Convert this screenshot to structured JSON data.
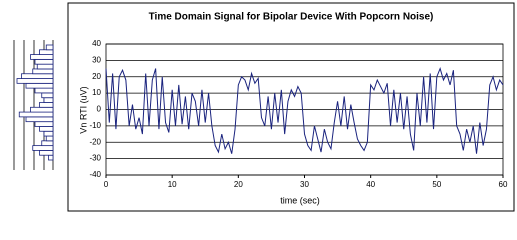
{
  "chart_data": [
    {
      "type": "line",
      "title": "Time Domain Signal for Bipolar Device With Popcorn Noise)",
      "xlabel": "time (sec)",
      "ylabel": "Vn RTI (uV)",
      "x": [
        0,
        0.5,
        1,
        1.5,
        2,
        2.5,
        3,
        3.5,
        4,
        4.5,
        5,
        5.5,
        6,
        6.5,
        7,
        7.5,
        8,
        8.5,
        9,
        9.5,
        10,
        10.5,
        11,
        11.5,
        12,
        12.5,
        13,
        13.5,
        14,
        14.5,
        15,
        15.5,
        16,
        16.5,
        17,
        17.5,
        18,
        18.5,
        19,
        19.5,
        20,
        20.5,
        21,
        21.5,
        22,
        22.5,
        23,
        23.5,
        24,
        24.5,
        25,
        25.5,
        26,
        26.5,
        27,
        27.5,
        28,
        28.5,
        29,
        29.5,
        30,
        30.5,
        31,
        31.5,
        32,
        32.5,
        33,
        33.5,
        34,
        34.5,
        35,
        35.5,
        36,
        36.5,
        37,
        37.5,
        38,
        38.5,
        39,
        39.5,
        40,
        40.5,
        41,
        41.5,
        42,
        42.5,
        43,
        43.5,
        44,
        44.5,
        45,
        45.5,
        46,
        46.5,
        47,
        47.5,
        48,
        48.5,
        49,
        49.5,
        50,
        50.5,
        51,
        51.5,
        52,
        52.5,
        53,
        53.5,
        54,
        54.5,
        55,
        55.5,
        56,
        56.5,
        57,
        57.5,
        58,
        58.5,
        59,
        59.5,
        60
      ],
      "values": [
        25,
        -8,
        22,
        -12,
        20,
        24,
        18,
        -10,
        3,
        -12,
        -5,
        -15,
        22,
        -10,
        18,
        25,
        -12,
        20,
        -8,
        -14,
        12,
        -10,
        15,
        -9,
        8,
        -12,
        10,
        5,
        -10,
        12,
        -8,
        10,
        -10,
        -22,
        -26,
        -15,
        -24,
        -20,
        -27,
        -12,
        15,
        20,
        18,
        12,
        22,
        16,
        19,
        -5,
        -10,
        8,
        -12,
        10,
        -8,
        12,
        -15,
        5,
        12,
        8,
        14,
        10,
        -15,
        -22,
        -25,
        -10,
        -18,
        -26,
        -12,
        -20,
        -24,
        -8,
        5,
        -10,
        8,
        -12,
        3,
        -8,
        -18,
        -22,
        -25,
        -20,
        15,
        12,
        18,
        14,
        10,
        16,
        -10,
        12,
        -8,
        10,
        -12,
        8,
        -15,
        -25,
        10,
        -10,
        20,
        -8,
        22,
        -12,
        20,
        25,
        18,
        22,
        15,
        24,
        -10,
        -15,
        -25,
        -12,
        -20,
        -10,
        -27,
        -8,
        -22,
        -12,
        15,
        20,
        12,
        18,
        15
      ],
      "color": "#1a237e",
      "xlim": [
        0,
        60
      ],
      "xticks": [
        0,
        10,
        20,
        30,
        40,
        50,
        60
      ],
      "ylim": [
        -40,
        40
      ],
      "yticks": [
        -40,
        -30,
        -20,
        -10,
        0,
        10,
        20,
        30,
        40
      ],
      "grid": true
    },
    {
      "type": "histogram",
      "orientation": "horizontal",
      "bins": [
        -30,
        -27.5,
        -25,
        -22.5,
        -20,
        -17.5,
        -15,
        -12.5,
        -10,
        -7.5,
        -5,
        -2.5,
        0,
        2.5,
        5,
        7.5,
        10,
        12.5,
        15,
        17.5,
        20,
        22.5,
        25,
        27.5,
        30
      ],
      "values": [
        2,
        6,
        9,
        5,
        3,
        4,
        6,
        8,
        12,
        15,
        10,
        6,
        4,
        5,
        8,
        12,
        16,
        14,
        9,
        7,
        8,
        10,
        6,
        3
      ],
      "color": "#1a237e",
      "xlim": [
        0,
        20
      ]
    }
  ]
}
